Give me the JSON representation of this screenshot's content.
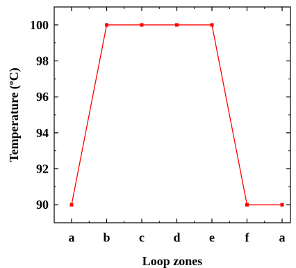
{
  "chart_data": {
    "type": "line",
    "title": "",
    "xlabel": "Loop zones",
    "ylabel": "Temperature (ºC)",
    "categories": [
      "a",
      "b",
      "c",
      "d",
      "e",
      "f",
      "a"
    ],
    "series": [
      {
        "values": [
          90,
          100,
          100,
          100,
          100,
          90,
          90
        ],
        "color": "#ff0000",
        "marker": "square"
      }
    ],
    "ylim": [
      89,
      101
    ],
    "yticks": [
      90,
      92,
      94,
      96,
      98,
      100
    ],
    "yticks_labels": [
      "90",
      "92",
      "94",
      "96",
      "98",
      "100"
    ],
    "grid": false,
    "legend": "none"
  }
}
